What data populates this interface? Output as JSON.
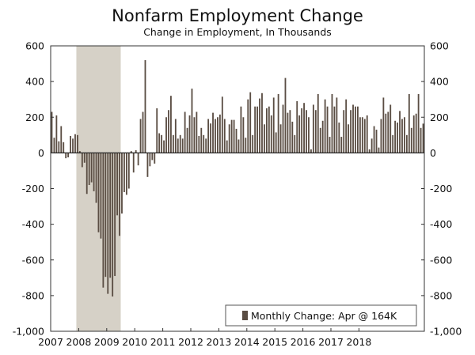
{
  "chart_data": {
    "type": "bar",
    "title": "Nonfarm Employment Change",
    "subtitle": "Change in Employment, In Thousands",
    "xlabel": "",
    "ylabel": "",
    "ylim": [
      -1000,
      600
    ],
    "yticks": [
      600,
      400,
      200,
      0,
      -200,
      -400,
      -600,
      -800,
      -1000
    ],
    "ytick_labels": [
      "600",
      "400",
      "200",
      "0",
      "-200",
      "-400",
      "-600",
      "-800",
      "-1,000"
    ],
    "xticks": [
      "2007",
      "2008",
      "2009",
      "2010",
      "2011",
      "2012",
      "2013",
      "2014",
      "2015",
      "2016",
      "2017",
      "2018"
    ],
    "start": "2007-01",
    "recession": {
      "start": "2007-12",
      "end": "2009-06"
    },
    "legend": {
      "label": "Monthly Change: Apr @ 164K",
      "position": "bottom-right"
    },
    "bar_color": "#5a4d43",
    "recession_color": "#d6d1c7",
    "series": [
      {
        "name": "Monthly Change",
        "values": [
          230,
          85,
          210,
          65,
          150,
          60,
          -30,
          -25,
          95,
          80,
          105,
          100,
          10,
          -80,
          -55,
          -230,
          -180,
          -165,
          -215,
          -280,
          -445,
          -480,
          -755,
          -695,
          -790,
          -700,
          -805,
          -690,
          -350,
          -465,
          -340,
          -220,
          -235,
          -200,
          10,
          -110,
          15,
          -70,
          190,
          230,
          520,
          -135,
          -75,
          -40,
          -60,
          250,
          110,
          100,
          70,
          200,
          240,
          320,
          100,
          190,
          80,
          100,
          80,
          230,
          140,
          210,
          360,
          200,
          230,
          95,
          140,
          100,
          80,
          190,
          165,
          225,
          190,
          200,
          215,
          315,
          190,
          70,
          160,
          185,
          185,
          135,
          75,
          260,
          200,
          85,
          300,
          340,
          100,
          260,
          260,
          305,
          335,
          160,
          250,
          260,
          210,
          310,
          115,
          330,
          160,
          270,
          420,
          225,
          240,
          175,
          100,
          290,
          210,
          250,
          280,
          240,
          200,
          20,
          270,
          240,
          330,
          140,
          180,
          300,
          260,
          90,
          330,
          260,
          310,
          170,
          90,
          240,
          300,
          160,
          240,
          270,
          260,
          260,
          200,
          200,
          190,
          210,
          20,
          80,
          150,
          130,
          30,
          190,
          310,
          220,
          230,
          270,
          100,
          180,
          170,
          235,
          190,
          200,
          100,
          330,
          140,
          210,
          220,
          330,
          140,
          164
        ]
      }
    ]
  }
}
